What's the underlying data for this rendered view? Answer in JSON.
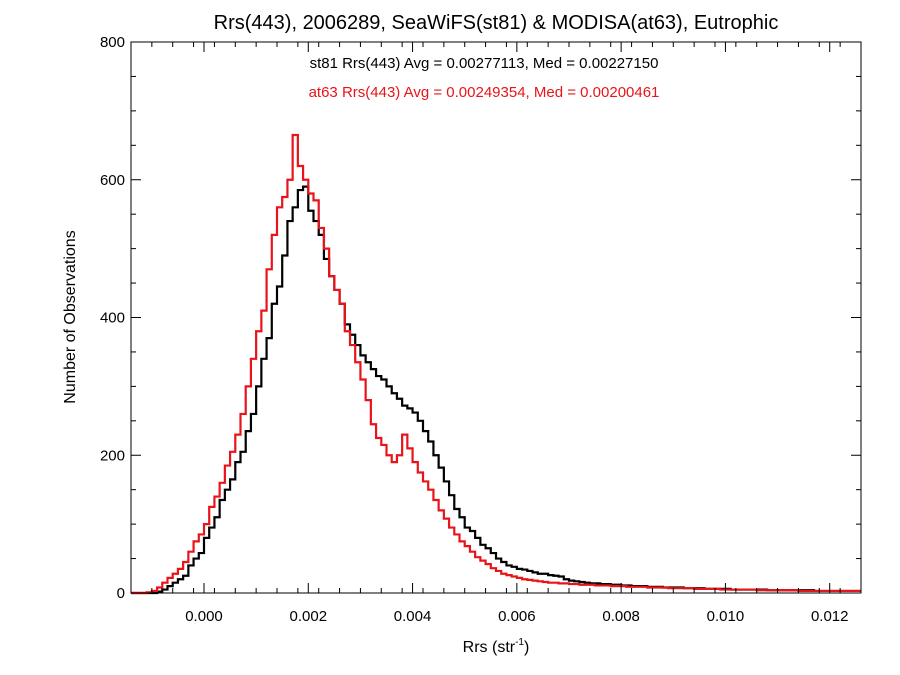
{
  "chart_data": {
    "type": "line",
    "step": true,
    "title": "Rrs(443), 2006289, SeaWiFS(st81) & MODISA(at63), Eutrophic",
    "xlabel": {
      "base": "Rrs (str",
      "sup": "-1",
      "suffix": ")"
    },
    "ylabel": "Number of Observations",
    "xlim": [
      -0.0014,
      0.0126
    ],
    "ylim": [
      0,
      800
    ],
    "xticks": [
      0.0,
      0.002,
      0.004,
      0.006,
      0.008,
      0.01,
      0.012
    ],
    "xtick_labels": [
      "0.000",
      "0.002",
      "0.004",
      "0.006",
      "0.008",
      "0.010",
      "0.012"
    ],
    "yticks": [
      0,
      200,
      400,
      600,
      800
    ],
    "ytick_labels": [
      "0",
      "200",
      "400",
      "600",
      "800"
    ],
    "grid": false,
    "annotations": [
      {
        "text": "st81 Rrs(443) Avg = 0.00277113, Med = 0.00227150",
        "color": "#000000"
      },
      {
        "text": "at63 Rrs(443) Avg = 0.00249354, Med = 0.00200461",
        "color": "#e8141a"
      }
    ],
    "series": [
      {
        "color": "#000000",
        "points": [
          [
            -0.0014,
            0
          ],
          [
            -0.0012,
            0
          ],
          [
            -0.001,
            0
          ],
          [
            -0.0009,
            2
          ],
          [
            -0.0008,
            5
          ],
          [
            -0.0007,
            10
          ],
          [
            -0.0006,
            15
          ],
          [
            -0.0005,
            20
          ],
          [
            -0.0004,
            25
          ],
          [
            -0.0003,
            40
          ],
          [
            -0.0002,
            50
          ],
          [
            -0.0001,
            58
          ],
          [
            0.0,
            80
          ],
          [
            0.0001,
            95
          ],
          [
            0.0002,
            110
          ],
          [
            0.0003,
            135
          ],
          [
            0.0004,
            150
          ],
          [
            0.0005,
            165
          ],
          [
            0.0006,
            190
          ],
          [
            0.0007,
            205
          ],
          [
            0.0008,
            235
          ],
          [
            0.0009,
            260
          ],
          [
            0.001,
            300
          ],
          [
            0.0011,
            340
          ],
          [
            0.0012,
            370
          ],
          [
            0.0013,
            420
          ],
          [
            0.0014,
            445
          ],
          [
            0.0015,
            490
          ],
          [
            0.0016,
            540
          ],
          [
            0.0017,
            560
          ],
          [
            0.0018,
            585
          ],
          [
            0.0019,
            590
          ],
          [
            0.002,
            555
          ],
          [
            0.0021,
            540
          ],
          [
            0.0022,
            520
          ],
          [
            0.0023,
            485
          ],
          [
            0.0024,
            460
          ],
          [
            0.0025,
            440
          ],
          [
            0.0026,
            420
          ],
          [
            0.0027,
            390
          ],
          [
            0.0028,
            375
          ],
          [
            0.0029,
            360
          ],
          [
            0.003,
            345
          ],
          [
            0.0031,
            335
          ],
          [
            0.0032,
            325
          ],
          [
            0.0033,
            315
          ],
          [
            0.0034,
            310
          ],
          [
            0.0035,
            300
          ],
          [
            0.0036,
            290
          ],
          [
            0.0037,
            282
          ],
          [
            0.0038,
            272
          ],
          [
            0.0039,
            268
          ],
          [
            0.004,
            262
          ],
          [
            0.0041,
            250
          ],
          [
            0.0042,
            235
          ],
          [
            0.0043,
            220
          ],
          [
            0.0044,
            200
          ],
          [
            0.0045,
            182
          ],
          [
            0.0046,
            162
          ],
          [
            0.0047,
            142
          ],
          [
            0.0048,
            122
          ],
          [
            0.0049,
            110
          ],
          [
            0.005,
            95
          ],
          [
            0.0051,
            90
          ],
          [
            0.0052,
            80
          ],
          [
            0.0053,
            70
          ],
          [
            0.0054,
            65
          ],
          [
            0.0055,
            58
          ],
          [
            0.0056,
            50
          ],
          [
            0.0057,
            45
          ],
          [
            0.0058,
            40
          ],
          [
            0.0059,
            38
          ],
          [
            0.006,
            35
          ],
          [
            0.0061,
            34
          ],
          [
            0.0062,
            32
          ],
          [
            0.0063,
            30
          ],
          [
            0.0064,
            28
          ],
          [
            0.0065,
            28
          ],
          [
            0.0066,
            26
          ],
          [
            0.0067,
            25
          ],
          [
            0.0068,
            24
          ],
          [
            0.0069,
            20
          ],
          [
            0.007,
            18
          ],
          [
            0.0071,
            17
          ],
          [
            0.0072,
            16
          ],
          [
            0.0073,
            15
          ],
          [
            0.0074,
            14
          ],
          [
            0.0075,
            14
          ],
          [
            0.0076,
            13
          ],
          [
            0.0077,
            13
          ],
          [
            0.0078,
            12
          ],
          [
            0.0079,
            12
          ],
          [
            0.008,
            11
          ],
          [
            0.0081,
            11
          ],
          [
            0.0082,
            10
          ],
          [
            0.0083,
            10
          ],
          [
            0.0084,
            10
          ],
          [
            0.0085,
            9
          ],
          [
            0.0086,
            9
          ],
          [
            0.0087,
            9
          ],
          [
            0.0088,
            8
          ],
          [
            0.0089,
            8
          ],
          [
            0.009,
            8
          ],
          [
            0.0091,
            8
          ],
          [
            0.0092,
            7
          ],
          [
            0.0093,
            7
          ],
          [
            0.0094,
            7
          ],
          [
            0.0095,
            7
          ],
          [
            0.0096,
            6
          ],
          [
            0.0097,
            6
          ],
          [
            0.0098,
            6
          ],
          [
            0.0099,
            6
          ],
          [
            0.01,
            6
          ],
          [
            0.0101,
            5
          ],
          [
            0.0102,
            5
          ],
          [
            0.0103,
            5
          ],
          [
            0.0104,
            5
          ],
          [
            0.0105,
            5
          ],
          [
            0.0106,
            5
          ],
          [
            0.0107,
            5
          ],
          [
            0.0108,
            4
          ],
          [
            0.0109,
            4
          ],
          [
            0.011,
            4
          ],
          [
            0.0111,
            4
          ],
          [
            0.0112,
            4
          ],
          [
            0.0113,
            4
          ],
          [
            0.0114,
            4
          ],
          [
            0.0115,
            4
          ],
          [
            0.0116,
            4
          ],
          [
            0.0117,
            3
          ],
          [
            0.0118,
            3
          ],
          [
            0.0119,
            3
          ],
          [
            0.012,
            3
          ],
          [
            0.0121,
            3
          ],
          [
            0.0122,
            3
          ],
          [
            0.0123,
            3
          ],
          [
            0.0124,
            3
          ],
          [
            0.0125,
            3
          ],
          [
            0.0126,
            3
          ]
        ]
      },
      {
        "color": "#e8141a",
        "points": [
          [
            -0.0014,
            0
          ],
          [
            -0.0012,
            0
          ],
          [
            -0.0011,
            1
          ],
          [
            -0.001,
            3
          ],
          [
            -0.0009,
            8
          ],
          [
            -0.0008,
            15
          ],
          [
            -0.0007,
            22
          ],
          [
            -0.0006,
            28
          ],
          [
            -0.0005,
            35
          ],
          [
            -0.0004,
            45
          ],
          [
            -0.0003,
            60
          ],
          [
            -0.0002,
            75
          ],
          [
            -0.0001,
            85
          ],
          [
            0.0,
            100
          ],
          [
            0.0001,
            125
          ],
          [
            0.0002,
            140
          ],
          [
            0.0003,
            160
          ],
          [
            0.0004,
            185
          ],
          [
            0.0005,
            205
          ],
          [
            0.0006,
            230
          ],
          [
            0.0007,
            260
          ],
          [
            0.0008,
            300
          ],
          [
            0.0009,
            340
          ],
          [
            0.001,
            380
          ],
          [
            0.0011,
            410
          ],
          [
            0.0012,
            470
          ],
          [
            0.0013,
            520
          ],
          [
            0.0014,
            560
          ],
          [
            0.0015,
            575
          ],
          [
            0.0016,
            600
          ],
          [
            0.0017,
            665
          ],
          [
            0.0018,
            620
          ],
          [
            0.0019,
            600
          ],
          [
            0.002,
            580
          ],
          [
            0.0021,
            570
          ],
          [
            0.0022,
            530
          ],
          [
            0.0023,
            500
          ],
          [
            0.0024,
            460
          ],
          [
            0.0025,
            440
          ],
          [
            0.0026,
            420
          ],
          [
            0.0027,
            380
          ],
          [
            0.0028,
            360
          ],
          [
            0.0029,
            335
          ],
          [
            0.003,
            310
          ],
          [
            0.0031,
            280
          ],
          [
            0.0032,
            245
          ],
          [
            0.0033,
            225
          ],
          [
            0.0034,
            215
          ],
          [
            0.0035,
            200
          ],
          [
            0.0036,
            190
          ],
          [
            0.0037,
            200
          ],
          [
            0.0038,
            230
          ],
          [
            0.0039,
            210
          ],
          [
            0.004,
            190
          ],
          [
            0.0041,
            175
          ],
          [
            0.0042,
            162
          ],
          [
            0.0043,
            150
          ],
          [
            0.0044,
            135
          ],
          [
            0.0045,
            120
          ],
          [
            0.0046,
            108
          ],
          [
            0.0047,
            95
          ],
          [
            0.0048,
            85
          ],
          [
            0.0049,
            75
          ],
          [
            0.005,
            68
          ],
          [
            0.0051,
            60
          ],
          [
            0.0052,
            52
          ],
          [
            0.0053,
            47
          ],
          [
            0.0054,
            42
          ],
          [
            0.0055,
            36
          ],
          [
            0.0056,
            32
          ],
          [
            0.0057,
            28
          ],
          [
            0.0058,
            26
          ],
          [
            0.0059,
            24
          ],
          [
            0.006,
            22
          ],
          [
            0.0061,
            20
          ],
          [
            0.0062,
            19
          ],
          [
            0.0063,
            18
          ],
          [
            0.0064,
            17
          ],
          [
            0.0065,
            16
          ],
          [
            0.0066,
            15
          ],
          [
            0.0067,
            15
          ],
          [
            0.0068,
            14
          ],
          [
            0.0069,
            14
          ],
          [
            0.007,
            13
          ],
          [
            0.0071,
            13
          ],
          [
            0.0072,
            12
          ],
          [
            0.0073,
            12
          ],
          [
            0.0074,
            12
          ],
          [
            0.0075,
            11
          ],
          [
            0.0076,
            11
          ],
          [
            0.0077,
            11
          ],
          [
            0.0078,
            10
          ],
          [
            0.0079,
            10
          ],
          [
            0.008,
            10
          ],
          [
            0.0081,
            9
          ],
          [
            0.0082,
            9
          ],
          [
            0.0083,
            9
          ],
          [
            0.0084,
            9
          ],
          [
            0.0085,
            8
          ],
          [
            0.0086,
            8
          ],
          [
            0.0087,
            8
          ],
          [
            0.0088,
            8
          ],
          [
            0.0089,
            7
          ],
          [
            0.009,
            7
          ],
          [
            0.0091,
            7
          ],
          [
            0.0092,
            7
          ],
          [
            0.0093,
            7
          ],
          [
            0.0094,
            6
          ],
          [
            0.0095,
            6
          ],
          [
            0.0096,
            6
          ],
          [
            0.0097,
            6
          ],
          [
            0.0098,
            6
          ],
          [
            0.0099,
            5
          ],
          [
            0.01,
            5
          ],
          [
            0.0101,
            5
          ],
          [
            0.0102,
            5
          ],
          [
            0.0103,
            5
          ],
          [
            0.0104,
            5
          ],
          [
            0.0105,
            5
          ],
          [
            0.0106,
            4
          ],
          [
            0.0107,
            4
          ],
          [
            0.0108,
            4
          ],
          [
            0.0109,
            4
          ],
          [
            0.011,
            4
          ],
          [
            0.0111,
            4
          ],
          [
            0.0112,
            4
          ],
          [
            0.0113,
            4
          ],
          [
            0.0114,
            3
          ],
          [
            0.0115,
            3
          ],
          [
            0.0116,
            3
          ],
          [
            0.0117,
            3
          ],
          [
            0.0118,
            3
          ],
          [
            0.0119,
            3
          ],
          [
            0.012,
            3
          ],
          [
            0.0121,
            3
          ],
          [
            0.0122,
            3
          ],
          [
            0.0123,
            3
          ],
          [
            0.0124,
            3
          ],
          [
            0.0125,
            3
          ],
          [
            0.0126,
            3
          ]
        ]
      }
    ]
  }
}
